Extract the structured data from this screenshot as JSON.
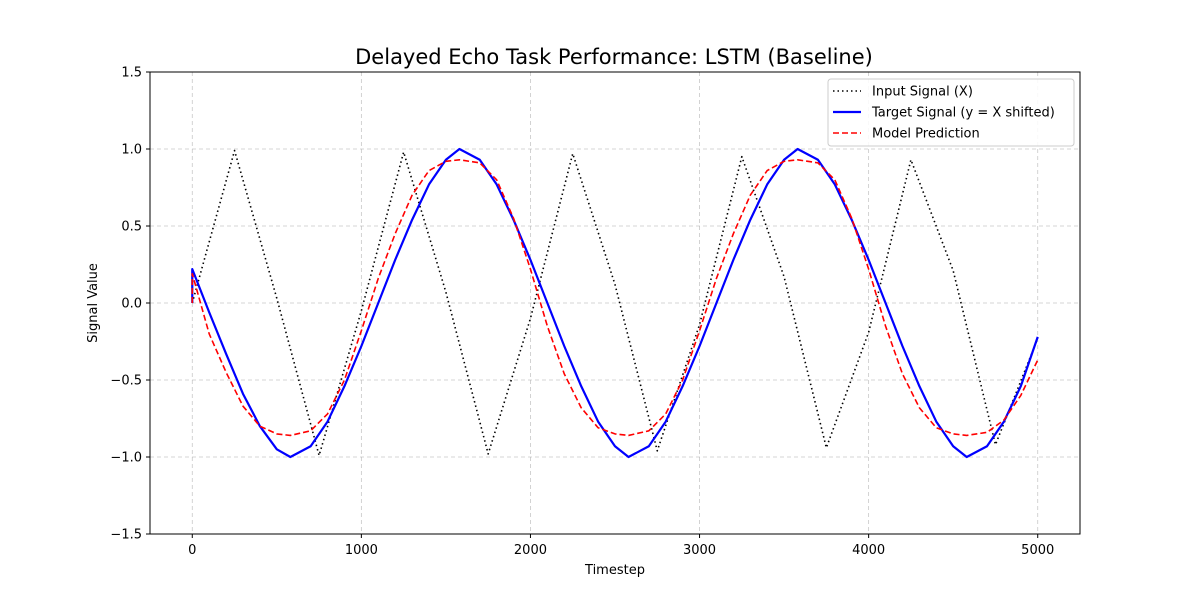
{
  "chart_data": {
    "type": "line",
    "title": "Delayed Echo Task Performance: LSTM (Baseline)",
    "xlabel": "Timestep",
    "ylabel": "Signal Value",
    "xlim": [
      -250,
      5250
    ],
    "ylim": [
      -1.5,
      1.5
    ],
    "xticks": [
      0,
      1000,
      2000,
      3000,
      4000,
      5000
    ],
    "yticks": [
      -1.5,
      -1.0,
      -0.5,
      0.0,
      0.5,
      1.0,
      1.5
    ],
    "xtick_labels": [
      "0",
      "1000",
      "2000",
      "3000",
      "4000",
      "5000"
    ],
    "ytick_labels": [
      "−1.5",
      "−1.0",
      "−0.5",
      "0.0",
      "0.5",
      "1.0",
      "1.5"
    ],
    "grid": true,
    "legend_position": "upper right",
    "series": [
      {
        "name": "Input Signal (X)",
        "color": "#000000",
        "style": "dotted",
        "x": [
          0,
          250,
          500,
          750,
          1000,
          1250,
          1500,
          1750,
          2000,
          2250,
          2500,
          2750,
          3000,
          3250,
          3500,
          3750,
          4000,
          4250,
          4500,
          4750,
          5000
        ],
        "values": [
          0.0,
          0.99,
          0.03,
          -0.99,
          -0.05,
          0.98,
          0.07,
          -0.98,
          -0.1,
          0.97,
          0.12,
          -0.96,
          -0.14,
          0.95,
          0.17,
          -0.94,
          -0.19,
          0.93,
          0.21,
          -0.92,
          -0.23
        ]
      },
      {
        "name": "Target Signal (y = X shifted)",
        "color": "#0000ff",
        "style": "solid",
        "x": [
          0,
          0,
          100,
          200,
          300,
          400,
          500,
          580,
          700,
          800,
          900,
          1000,
          1100,
          1200,
          1300,
          1400,
          1500,
          1580,
          1700,
          1800,
          1900,
          2000,
          2100,
          2200,
          2300,
          2400,
          2500,
          2580,
          2700,
          2800,
          2900,
          3000,
          3100,
          3200,
          3300,
          3400,
          3500,
          3580,
          3700,
          3800,
          3900,
          4000,
          4100,
          4200,
          4300,
          4400,
          4500,
          4580,
          4700,
          4800,
          4900,
          5000
        ],
        "values": [
          0.0,
          0.22,
          -0.06,
          -0.33,
          -0.59,
          -0.8,
          -0.95,
          -1.0,
          -0.93,
          -0.77,
          -0.54,
          -0.28,
          0.0,
          0.28,
          0.54,
          0.77,
          0.93,
          1.0,
          0.93,
          0.77,
          0.54,
          0.28,
          0.0,
          -0.28,
          -0.54,
          -0.77,
          -0.93,
          -1.0,
          -0.93,
          -0.77,
          -0.54,
          -0.28,
          0.0,
          0.28,
          0.54,
          0.77,
          0.93,
          1.0,
          0.93,
          0.77,
          0.54,
          0.28,
          0.0,
          -0.28,
          -0.54,
          -0.77,
          -0.93,
          -1.0,
          -0.93,
          -0.77,
          -0.54,
          -0.22
        ]
      },
      {
        "name": "Model Prediction",
        "color": "#ff0000",
        "style": "dashed",
        "x": [
          0,
          0,
          100,
          200,
          300,
          400,
          500,
          580,
          700,
          800,
          900,
          1000,
          1100,
          1200,
          1300,
          1400,
          1500,
          1580,
          1700,
          1800,
          1900,
          2000,
          2100,
          2200,
          2300,
          2400,
          2500,
          2580,
          2700,
          2800,
          2900,
          3000,
          3100,
          3200,
          3300,
          3400,
          3500,
          3580,
          3700,
          3800,
          3900,
          4000,
          4100,
          4200,
          4300,
          4400,
          4500,
          4580,
          4700,
          4800,
          4900,
          5000
        ],
        "values": [
          0.0,
          0.19,
          -0.2,
          -0.45,
          -0.67,
          -0.8,
          -0.85,
          -0.86,
          -0.83,
          -0.72,
          -0.5,
          -0.18,
          0.16,
          0.45,
          0.7,
          0.86,
          0.92,
          0.93,
          0.91,
          0.8,
          0.55,
          0.22,
          -0.15,
          -0.46,
          -0.68,
          -0.81,
          -0.85,
          -0.86,
          -0.83,
          -0.72,
          -0.5,
          -0.18,
          0.16,
          0.45,
          0.7,
          0.86,
          0.92,
          0.93,
          0.91,
          0.8,
          0.55,
          0.22,
          -0.15,
          -0.46,
          -0.68,
          -0.81,
          -0.85,
          -0.86,
          -0.84,
          -0.76,
          -0.6,
          -0.37
        ]
      }
    ]
  }
}
